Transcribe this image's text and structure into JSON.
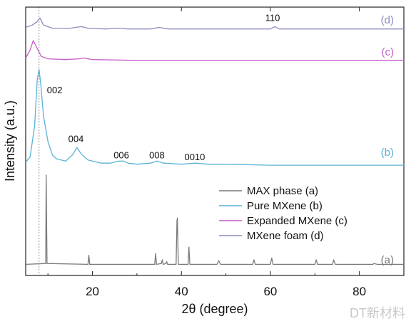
{
  "chart_data": {
    "type": "line",
    "title": "",
    "xlabel": "2θ (degree)",
    "ylabel": "Intensity (a.u.)",
    "xlim": [
      5,
      90
    ],
    "xticks": [
      20,
      40,
      60,
      80
    ],
    "y_ticks_shown": false,
    "reference_line_x": 8,
    "series": [
      {
        "name": "MAX phase (a)",
        "tag": "(a)",
        "color": "#7a7a7a",
        "points": [
          [
            5,
            0.02
          ],
          [
            9.5,
            0.03
          ],
          [
            9.6,
            1.0
          ],
          [
            9.8,
            0.03
          ],
          [
            19,
            0.02
          ],
          [
            19.2,
            0.12
          ],
          [
            19.4,
            0.02
          ],
          [
            34,
            0.02
          ],
          [
            34.2,
            0.14
          ],
          [
            34.4,
            0.02
          ],
          [
            35.5,
            0.03
          ],
          [
            35.7,
            0.07
          ],
          [
            35.9,
            0.02
          ],
          [
            36.5,
            0.03
          ],
          [
            36.7,
            0.05
          ],
          [
            36.9,
            0.02
          ],
          [
            38.8,
            0.02
          ],
          [
            39,
            0.5
          ],
          [
            39.1,
            0.53
          ],
          [
            39.3,
            0.02
          ],
          [
            41.5,
            0.02
          ],
          [
            41.7,
            0.21
          ],
          [
            41.9,
            0.02
          ],
          [
            48,
            0.02
          ],
          [
            48.4,
            0.06
          ],
          [
            48.8,
            0.02
          ],
          [
            56,
            0.02
          ],
          [
            56.3,
            0.07
          ],
          [
            56.6,
            0.02
          ],
          [
            60,
            0.02
          ],
          [
            60.3,
            0.09
          ],
          [
            60.6,
            0.02
          ],
          [
            70,
            0.02
          ],
          [
            70.3,
            0.07
          ],
          [
            70.6,
            0.02
          ],
          [
            74,
            0.02
          ],
          [
            74.2,
            0.07
          ],
          [
            74.6,
            0.02
          ],
          [
            83,
            0.02
          ],
          [
            83.3,
            0.03
          ],
          [
            84,
            0.02
          ],
          [
            90,
            0.02
          ]
        ]
      },
      {
        "name": "Pure MXene (b)",
        "tag": "(b)",
        "color": "#5ab3d6",
        "points": [
          [
            5,
            0.05
          ],
          [
            6,
            0.1
          ],
          [
            7,
            0.4
          ],
          [
            7.6,
            0.85
          ],
          [
            8,
            0.95
          ],
          [
            8.4,
            0.8
          ],
          [
            9,
            0.5
          ],
          [
            10,
            0.25
          ],
          [
            11,
            0.12
          ],
          [
            12,
            0.08
          ],
          [
            14,
            0.06
          ],
          [
            15.5,
            0.12
          ],
          [
            16.5,
            0.19
          ],
          [
            17.5,
            0.13
          ],
          [
            19,
            0.07
          ],
          [
            22,
            0.04
          ],
          [
            24,
            0.04
          ],
          [
            26,
            0.06
          ],
          [
            27,
            0.06
          ],
          [
            28,
            0.04
          ],
          [
            30,
            0.03
          ],
          [
            33,
            0.04
          ],
          [
            34.5,
            0.06
          ],
          [
            36,
            0.04
          ],
          [
            40,
            0.03
          ],
          [
            43,
            0.04
          ],
          [
            46,
            0.03
          ],
          [
            50,
            0.03
          ],
          [
            60,
            0.02
          ],
          [
            70,
            0.02
          ],
          [
            80,
            0.02
          ],
          [
            90,
            0.02
          ]
        ]
      },
      {
        "name": "Expanded MXene (c)",
        "tag": "(c)",
        "color": "#c45fc8",
        "points": [
          [
            5,
            0.05
          ],
          [
            6,
            0.15
          ],
          [
            6.7,
            0.27
          ],
          [
            7.5,
            0.18
          ],
          [
            8.5,
            0.07
          ],
          [
            10,
            0.04
          ],
          [
            14,
            0.03
          ],
          [
            17,
            0.04
          ],
          [
            18,
            0.05
          ],
          [
            20,
            0.03
          ],
          [
            30,
            0.02
          ],
          [
            40,
            0.02
          ],
          [
            50,
            0.02
          ],
          [
            60,
            0.02
          ],
          [
            70,
            0.02
          ],
          [
            80,
            0.02
          ],
          [
            90,
            0.02
          ]
        ]
      },
      {
        "name": "MXene foam (d)",
        "tag": "(d)",
        "color": "#8c8cc0",
        "points": [
          [
            5,
            0.05
          ],
          [
            6.5,
            0.08
          ],
          [
            7.5,
            0.12
          ],
          [
            8.2,
            0.17
          ],
          [
            9,
            0.08
          ],
          [
            11,
            0.04
          ],
          [
            15,
            0.04
          ],
          [
            17.5,
            0.06
          ],
          [
            19,
            0.04
          ],
          [
            23,
            0.03
          ],
          [
            26,
            0.04
          ],
          [
            28,
            0.03
          ],
          [
            33,
            0.03
          ],
          [
            35,
            0.05
          ],
          [
            37,
            0.03
          ],
          [
            44,
            0.03
          ],
          [
            50,
            0.03
          ],
          [
            60,
            0.03
          ],
          [
            61,
            0.06
          ],
          [
            62,
            0.03
          ],
          [
            70,
            0.03
          ],
          [
            80,
            0.03
          ],
          [
            90,
            0.03
          ]
        ]
      }
    ],
    "annotations": [
      {
        "label": "110",
        "x": 60.5,
        "series": "(d)"
      },
      {
        "label": "002",
        "x": 9.3,
        "series": "(b)"
      },
      {
        "label": "004",
        "x": 16.3,
        "series": "(b)"
      },
      {
        "label": "006",
        "x": 26.5,
        "series": "(b)"
      },
      {
        "label": "008",
        "x": 34.5,
        "series": "(b)"
      },
      {
        "label": "0010",
        "x": 43.0,
        "series": "(b)"
      }
    ],
    "legend": {
      "position": "center-right",
      "entries": [
        "MAX phase (a)",
        "Pure MXene (b)",
        "Expanded MXene (c)",
        "MXene foam (d)"
      ]
    }
  },
  "watermark": "DT新材料"
}
